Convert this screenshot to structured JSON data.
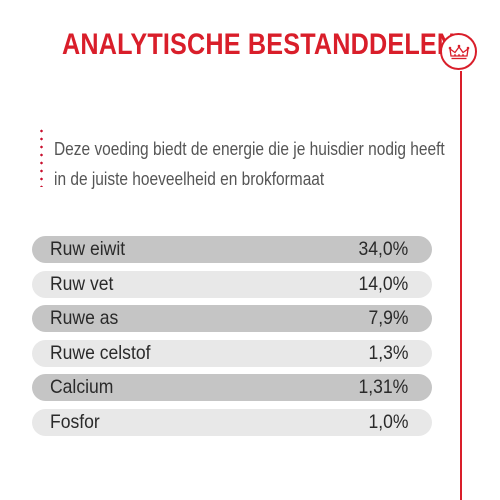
{
  "header": {
    "title": "ANALYTISCHE BESTANDDELEN",
    "badge_icon": "crown-icon",
    "accent_color": "#d91e2a"
  },
  "intro": {
    "line1": "Deze voeding biedt de energie die je huisdier nodig heeft",
    "line2": "in de juiste hoeveelheid en brokformaat"
  },
  "nutrients": [
    {
      "name": "Ruw eiwit",
      "value": "34,0%"
    },
    {
      "name": "Ruw vet",
      "value": "14,0%"
    },
    {
      "name": "Ruwe as",
      "value": "7,9%"
    },
    {
      "name": "Ruwe celstof",
      "value": "1,3%"
    },
    {
      "name": "Calcium",
      "value": "1,31%"
    },
    {
      "name": "Fosfor",
      "value": "1,0%"
    }
  ]
}
